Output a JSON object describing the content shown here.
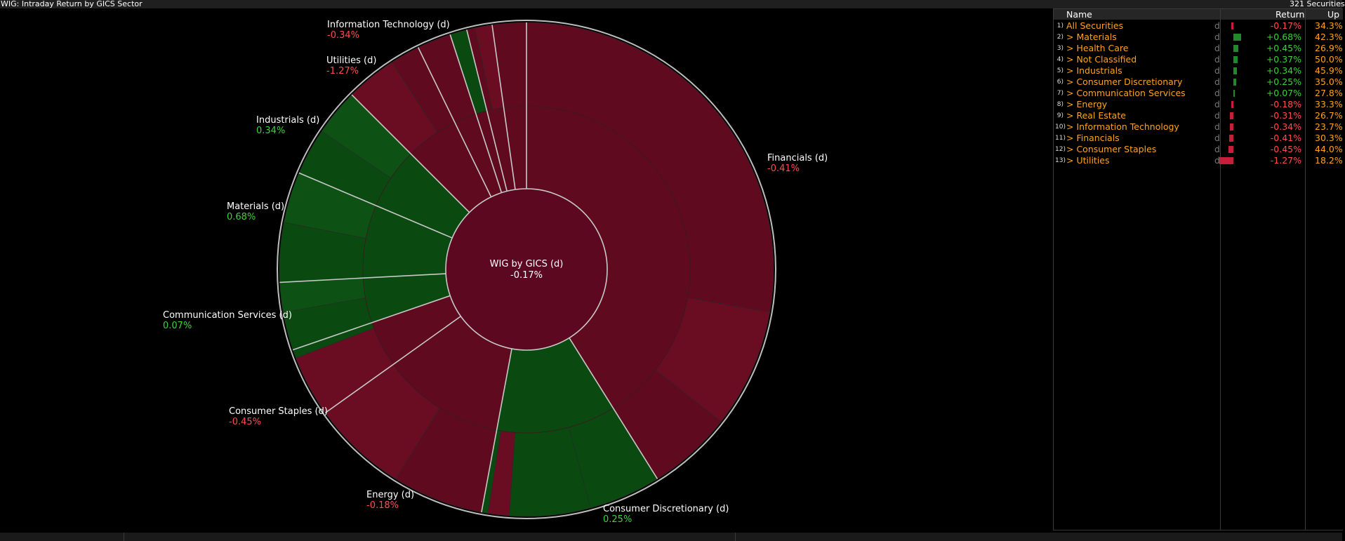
{
  "title": "WIG: Intraday Return by GICS Sector",
  "securities_count": "321 Securities",
  "center": {
    "name": "WIG by GICS (d)",
    "value": "-0.17%",
    "color": "#5c0820"
  },
  "colors": {
    "neg": "#5f0a1e",
    "neg_alt": "#6a0c22",
    "pos": "#0a4a10",
    "pos_alt": "#0d5214"
  },
  "sectors": [
    {
      "name": "Financials (d)",
      "value": "-0.41%",
      "sign": "neg"
    },
    {
      "name": "Consumer Discretionary (d)",
      "value": "0.25%",
      "sign": "pos"
    },
    {
      "name": "Energy (d)",
      "value": "-0.18%",
      "sign": "neg"
    },
    {
      "name": "Consumer Staples (d)",
      "value": "-0.45%",
      "sign": "neg"
    },
    {
      "name": "Communication Services (d)",
      "value": "0.07%",
      "sign": "pos"
    },
    {
      "name": "Materials (d)",
      "value": "0.68%",
      "sign": "pos"
    },
    {
      "name": "Industrials (d)",
      "value": "0.34%",
      "sign": "pos"
    },
    {
      "name": "Utilities (d)",
      "value": "-1.27%",
      "sign": "neg"
    },
    {
      "name": "Information Technology (d)",
      "value": "-0.34%",
      "sign": "neg"
    }
  ],
  "table": {
    "headers": {
      "name": "Name",
      "return": "Return",
      "up": "Up"
    },
    "rows": [
      {
        "idx": "1)",
        "name": "All Securities",
        "d": "d",
        "ret": "-0.17%",
        "retnum": -0.17,
        "up": "34.3%",
        "sign": "neg"
      },
      {
        "idx": "2)",
        "name": "> Materials",
        "d": "d",
        "ret": "+0.68%",
        "retnum": 0.68,
        "up": "42.3%",
        "sign": "pos"
      },
      {
        "idx": "3)",
        "name": "> Health Care",
        "d": "d",
        "ret": "+0.45%",
        "retnum": 0.45,
        "up": "26.9%",
        "sign": "pos"
      },
      {
        "idx": "4)",
        "name": "> Not Classified",
        "d": "d",
        "ret": "+0.37%",
        "retnum": 0.37,
        "up": "50.0%",
        "sign": "pos"
      },
      {
        "idx": "5)",
        "name": "> Industrials",
        "d": "d",
        "ret": "+0.34%",
        "retnum": 0.34,
        "up": "45.9%",
        "sign": "pos"
      },
      {
        "idx": "6)",
        "name": "> Consumer Discretionary",
        "d": "d",
        "ret": "+0.25%",
        "retnum": 0.25,
        "up": "35.0%",
        "sign": "pos"
      },
      {
        "idx": "7)",
        "name": "> Communication Services",
        "d": "d",
        "ret": "+0.07%",
        "retnum": 0.07,
        "up": "27.8%",
        "sign": "pos"
      },
      {
        "idx": "8)",
        "name": "> Energy",
        "d": "d",
        "ret": "-0.18%",
        "retnum": -0.18,
        "up": "33.3%",
        "sign": "neg"
      },
      {
        "idx": "9)",
        "name": "> Real Estate",
        "d": "d",
        "ret": "-0.31%",
        "retnum": -0.31,
        "up": "26.7%",
        "sign": "neg"
      },
      {
        "idx": "10)",
        "name": "> Information Technology",
        "d": "d",
        "ret": "-0.34%",
        "retnum": -0.34,
        "up": "23.7%",
        "sign": "neg"
      },
      {
        "idx": "11)",
        "name": "> Financials",
        "d": "d",
        "ret": "-0.41%",
        "retnum": -0.41,
        "up": "30.3%",
        "sign": "neg"
      },
      {
        "idx": "12)",
        "name": "> Consumer Staples",
        "d": "d",
        "ret": "-0.45%",
        "retnum": -0.45,
        "up": "44.0%",
        "sign": "neg"
      },
      {
        "idx": "13)",
        "name": "> Utilities",
        "d": "d",
        "ret": "-1.27%",
        "retnum": -1.27,
        "up": "18.2%",
        "sign": "neg"
      }
    ]
  }
}
